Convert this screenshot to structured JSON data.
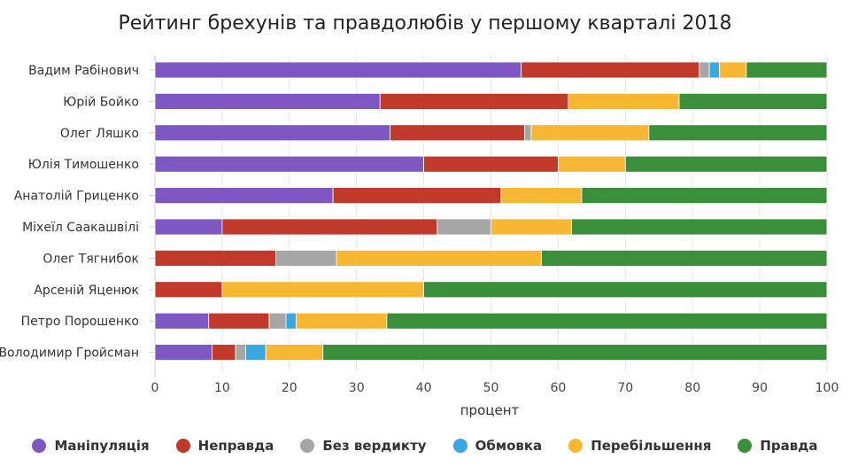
{
  "chart_data": {
    "type": "bar",
    "orientation": "horizontal",
    "stacked": true,
    "title": "Рейтинг брехунів та правдолюбів у першому кварталі 2018",
    "xlabel": "процент",
    "ylabel": "",
    "xlim": [
      0,
      100
    ],
    "xticks": [
      "0",
      "10",
      "20",
      "30",
      "40",
      "50",
      "60",
      "70",
      "80",
      "90",
      "100"
    ],
    "grid": true,
    "legend_position": "bottom",
    "categories": [
      "Вадим Рабінович",
      "Юрій Бойко",
      "Олег Ляшко",
      "Юлія Тимошенко",
      "Анатолій Гриценко",
      "Міхеїл Саакашвілі",
      "Олег Тягнибок",
      "Арсеній Яценюк",
      "Петро Порошенко",
      "Володимир Гройсман"
    ],
    "series": [
      {
        "name": "Маніпуляція",
        "color": "#7e57c2",
        "values": [
          54.5,
          33.5,
          35,
          40,
          26.5,
          10,
          0,
          0,
          8,
          8.5
        ]
      },
      {
        "name": "Неправда",
        "color": "#c0392b",
        "values": [
          26.5,
          28,
          20,
          20,
          25,
          32,
          18,
          10,
          9,
          3.5
        ]
      },
      {
        "name": "Без вердикту",
        "color": "#a6a6a6",
        "values": [
          1.5,
          0,
          1,
          0,
          0,
          8,
          9,
          0,
          2.5,
          1.5
        ]
      },
      {
        "name": "Обмовка",
        "color": "#39a8e0",
        "values": [
          1.5,
          0,
          0,
          0,
          0,
          0,
          0,
          0,
          1.5,
          3
        ]
      },
      {
        "name": "Перебільшення",
        "color": "#f7b733",
        "values": [
          4,
          16.5,
          17.5,
          10,
          12,
          12,
          30.5,
          30,
          13.5,
          8.5
        ]
      },
      {
        "name": "Правда",
        "color": "#3b8f3b",
        "values": [
          12,
          22,
          26.5,
          30,
          36.5,
          38,
          42.5,
          60,
          65.5,
          75
        ]
      }
    ]
  }
}
